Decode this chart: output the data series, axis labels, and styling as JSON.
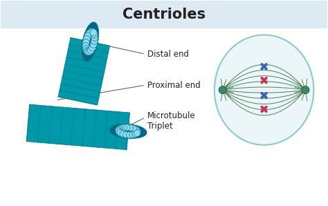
{
  "title": "Centrioles",
  "title_fontsize": 15,
  "title_fontweight": "bold",
  "title_bg_color": "#ddeaf3",
  "bg_color": "#ffffff",
  "label_distal": "Distal end",
  "label_proximal": "Proximal end",
  "label_microtubule": "Microtubule\nTriplet",
  "label_fontsize": 8.5,
  "col_body": "#0099aa",
  "col_stripe": "#007a8a",
  "col_end_face": "#006688",
  "col_dot": "#88ddee",
  "col_dot_edge": "#005577",
  "cell_fill": "#eaf6f8",
  "cell_edge": "#88cccc",
  "spindle_color": "#4a7a50",
  "chromo_blue": "#3366bb",
  "chromo_pink": "#cc3355",
  "centrosome_fill": "#3a8a6a",
  "centrosome_edge": "#226644",
  "line_color": "#666666",
  "text_color": "#222222"
}
